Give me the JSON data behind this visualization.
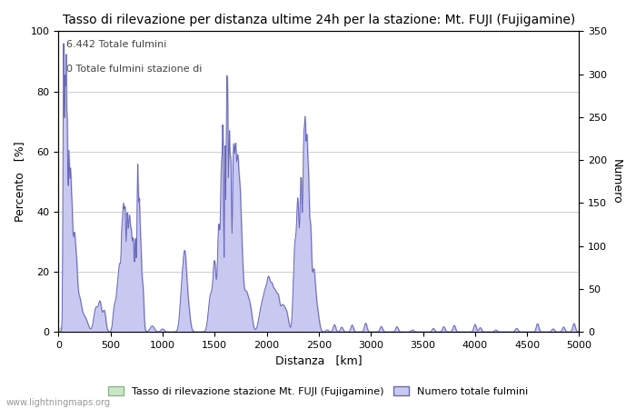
{
  "title": "Tasso di rilevazione per distanza ultime 24h per la stazione: Mt. FUJI (Fujigamine)",
  "xlabel": "Distanza   [km]",
  "ylabel_left": "Percento   [%]",
  "ylabel_right": "Numero",
  "annotation_line1": "6.442 Totale fulmini",
  "annotation_line2": "0 Totale fulmini stazione di",
  "xlim": [
    0,
    5000
  ],
  "ylim_left": [
    0,
    100
  ],
  "ylim_right": [
    0,
    350
  ],
  "xticks": [
    0,
    500,
    1000,
    1500,
    2000,
    2500,
    3000,
    3500,
    4000,
    4500,
    5000
  ],
  "yticks_left": [
    0,
    20,
    40,
    60,
    80,
    100
  ],
  "yticks_right": [
    0,
    50,
    100,
    150,
    200,
    250,
    300,
    350
  ],
  "fill_color_blue": "#c8c8f0",
  "line_color_blue": "#6868b8",
  "fill_color_green": "#c8e8c8",
  "line_color_green": "#88b888",
  "background_color": "#ffffff",
  "grid_color": "#bbbbbb",
  "legend_label_green": "Tasso di rilevazione stazione Mt. FUJI (Fujigamine)",
  "legend_label_blue": "Numero totale fulmini",
  "watermark": "www.lightningmaps.org",
  "title_fontsize": 10,
  "axis_fontsize": 9,
  "tick_fontsize": 8,
  "legend_fontsize": 8
}
